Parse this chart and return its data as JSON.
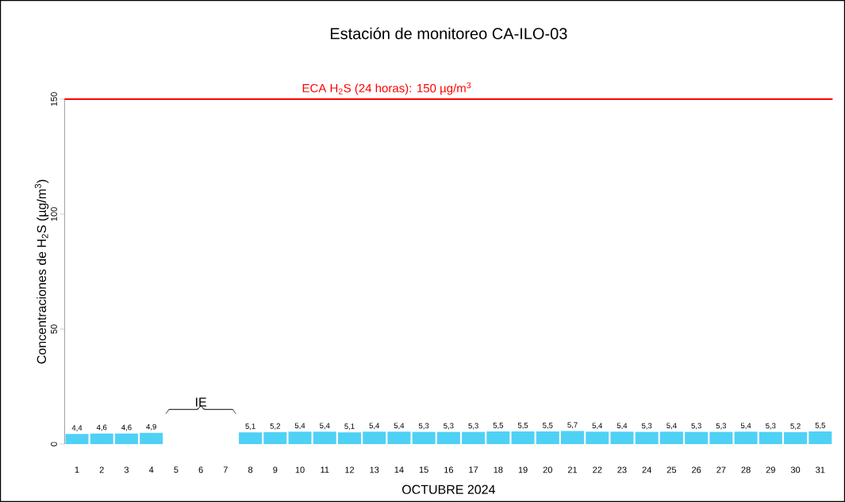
{
  "chart_data": {
    "type": "bar",
    "title": "Estación de monitoreo  CA-ILO-03",
    "xlabel": "OCTUBRE 2024",
    "ylabel": "Concentraciones de H$_{2}$S (µg/m$^{3}$)",
    "categories": [
      "1",
      "2",
      "3",
      "4",
      "5",
      "6",
      "7",
      "8",
      "9",
      "10",
      "11",
      "12",
      "13",
      "14",
      "15",
      "16",
      "17",
      "18",
      "19",
      "20",
      "21",
      "22",
      "23",
      "24",
      "25",
      "26",
      "27",
      "28",
      "29",
      "30",
      "31"
    ],
    "values": [
      4.4,
      4.6,
      4.6,
      4.9,
      null,
      null,
      null,
      5.1,
      5.2,
      5.4,
      5.4,
      5.1,
      5.4,
      5.4,
      5.3,
      5.3,
      5.3,
      5.5,
      5.5,
      5.5,
      5.7,
      5.4,
      5.4,
      5.3,
      5.4,
      5.3,
      5.3,
      5.4,
      5.3,
      5.2,
      5.5
    ],
    "value_labels": [
      "4,4",
      "4,6",
      "4,6",
      "4,9",
      null,
      null,
      null,
      "5,1",
      "5,2",
      "5,4",
      "5,4",
      "5,1",
      "5,4",
      "5,4",
      "5,3",
      "5,3",
      "5,3",
      "5,5",
      "5,5",
      "5,5",
      "5,7",
      "5,4",
      "5,4",
      "5,3",
      "5,4",
      "5,3",
      "5,3",
      "5,4",
      "5,3",
      "5,2",
      "5,5"
    ],
    "color": "#4fd1f5",
    "ylim": [
      0,
      150
    ],
    "yticks": [
      0,
      50,
      100,
      150
    ],
    "ref_lines": [
      {
        "axis": "y",
        "value": 150,
        "label": "ECA H$_{2}$S (24 horas): 150 µg/m$^{3}$",
        "color": "#ff0000"
      }
    ],
    "annotations": [
      "IE"
    ]
  }
}
